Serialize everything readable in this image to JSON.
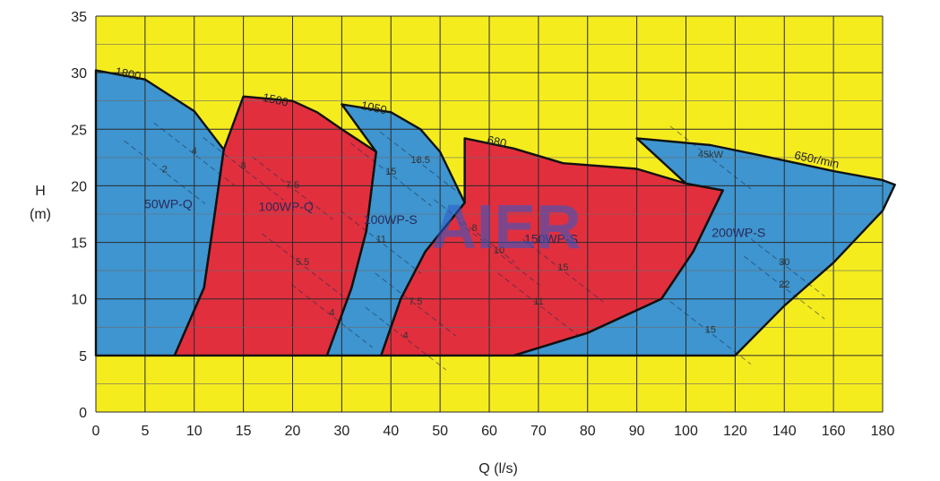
{
  "chart_data": {
    "type": "area",
    "xlabel": "Q (l/s)",
    "ylabel_line1": "H",
    "ylabel_line2": "(m)",
    "ylim": [
      0,
      35
    ],
    "yticks": [
      0,
      5,
      10,
      15,
      20,
      25,
      30,
      35
    ],
    "xticks": [
      "0",
      "5",
      "10",
      "15",
      "20",
      "30",
      "40",
      "50",
      "60",
      "70",
      "80",
      "90",
      "100",
      "120",
      "140",
      "160",
      "180"
    ],
    "grid": true,
    "watermark": "AIER",
    "colors": {
      "background": "#f5ec1e",
      "blue": "#3e95cf",
      "red": "#e12f3e",
      "grid": "#2b2b2b",
      "outline": "#111111"
    },
    "regions": [
      {
        "label": "50WP-Q",
        "speed": "1800",
        "color": "blue",
        "boundary": [
          [
            "0",
            30.2
          ],
          [
            "5",
            29.4
          ],
          [
            "10",
            26.6
          ],
          [
            "13",
            23.2
          ],
          [
            "12",
            17.0
          ],
          [
            "11",
            11.0
          ],
          [
            "8",
            5.0
          ],
          [
            "0",
            5.0
          ]
        ],
        "kw": [
          {
            "text": "2",
            "x": "7",
            "y": 21.2
          },
          {
            "text": "4",
            "x": "10",
            "y": 22.8
          }
        ]
      },
      {
        "label": "100WP-Q",
        "speed": "1500",
        "color": "red",
        "boundary": [
          [
            "15",
            27.9
          ],
          [
            "20",
            27.5
          ],
          [
            "25",
            26.5
          ],
          [
            "30",
            25.0
          ],
          [
            "37",
            23.0
          ],
          [
            "35",
            16.0
          ],
          [
            "32",
            11.0
          ],
          [
            "27",
            5.0
          ],
          [
            "8",
            5.0
          ],
          [
            "11",
            11.0
          ],
          [
            "12",
            17.0
          ],
          [
            "13",
            23.2
          ]
        ],
        "kw": [
          {
            "text": "8",
            "x": "15",
            "y": 21.5
          },
          {
            "text": "7.5",
            "x": "20",
            "y": 19.8
          },
          {
            "text": "5.5",
            "x": "22",
            "y": 13.0
          },
          {
            "text": "4",
            "x": "28",
            "y": 8.5
          }
        ]
      },
      {
        "label": "100WP-S",
        "speed": "1050",
        "color": "blue",
        "boundary": [
          [
            "30",
            27.2
          ],
          [
            "40",
            26.5
          ],
          [
            "46",
            25.0
          ],
          [
            "50",
            23.0
          ],
          [
            "55",
            18.5
          ],
          [
            "47",
            14.2
          ],
          [
            "42",
            10.0
          ],
          [
            "38",
            5.0
          ],
          [
            "27",
            5.0
          ],
          [
            "32",
            11.0
          ],
          [
            "35",
            16.0
          ],
          [
            "37",
            23.0
          ]
        ],
        "kw": [
          {
            "text": "18.5",
            "x": "46",
            "y": 22.0
          },
          {
            "text": "15",
            "x": "40",
            "y": 21.0
          },
          {
            "text": "11",
            "x": "38",
            "y": 15.0
          },
          {
            "text": "7.5",
            "x": "45",
            "y": 9.5
          },
          {
            "text": "4",
            "x": "43",
            "y": 6.5
          }
        ]
      },
      {
        "label": "150WP-S",
        "speed": "680",
        "color": "red",
        "boundary": [
          [
            "55",
            24.2
          ],
          [
            "65",
            23.3
          ],
          [
            "75",
            22.0
          ],
          [
            "90",
            21.5
          ],
          [
            "100",
            20.2
          ],
          [
            "115",
            19.6
          ],
          [
            "103",
            14.2
          ],
          [
            "95",
            10.0
          ],
          [
            "80",
            7.0
          ],
          [
            "65",
            5.0
          ],
          [
            "38",
            5.0
          ],
          [
            "42",
            10.0
          ],
          [
            "47",
            14.2
          ],
          [
            "55",
            18.5
          ]
        ],
        "kw": [
          {
            "text": "8",
            "x": "57",
            "y": 16.0
          },
          {
            "text": "10",
            "x": "62",
            "y": 14.0
          },
          {
            "text": "15",
            "x": "75",
            "y": 12.5
          },
          {
            "text": "11",
            "x": "70",
            "y": 9.5
          }
        ]
      },
      {
        "label": "200WP-S",
        "speed": "650r/min",
        "color": "blue",
        "boundary": [
          [
            "90",
            24.2
          ],
          [
            "110",
            23.6
          ],
          [
            "130",
            22.7
          ],
          [
            "160",
            21.3
          ],
          [
            "180",
            20.5
          ],
          [
            "185",
            20.1
          ],
          [
            "180",
            17.8
          ],
          [
            "160",
            13.2
          ],
          [
            "140",
            9.4
          ],
          [
            "120",
            5.0
          ],
          [
            "65",
            5.0
          ],
          [
            "80",
            7.0
          ],
          [
            "95",
            10.0
          ],
          [
            "103",
            14.2
          ],
          [
            "115",
            19.6
          ],
          [
            "100",
            20.2
          ]
        ],
        "kw": [
          {
            "text": "45kW",
            "x": "110",
            "y": 22.5
          },
          {
            "text": "30",
            "x": "140",
            "y": 13.0
          },
          {
            "text": "22",
            "x": "140",
            "y": 11.0
          },
          {
            "text": "15",
            "x": "110",
            "y": 7.0
          }
        ]
      }
    ]
  }
}
